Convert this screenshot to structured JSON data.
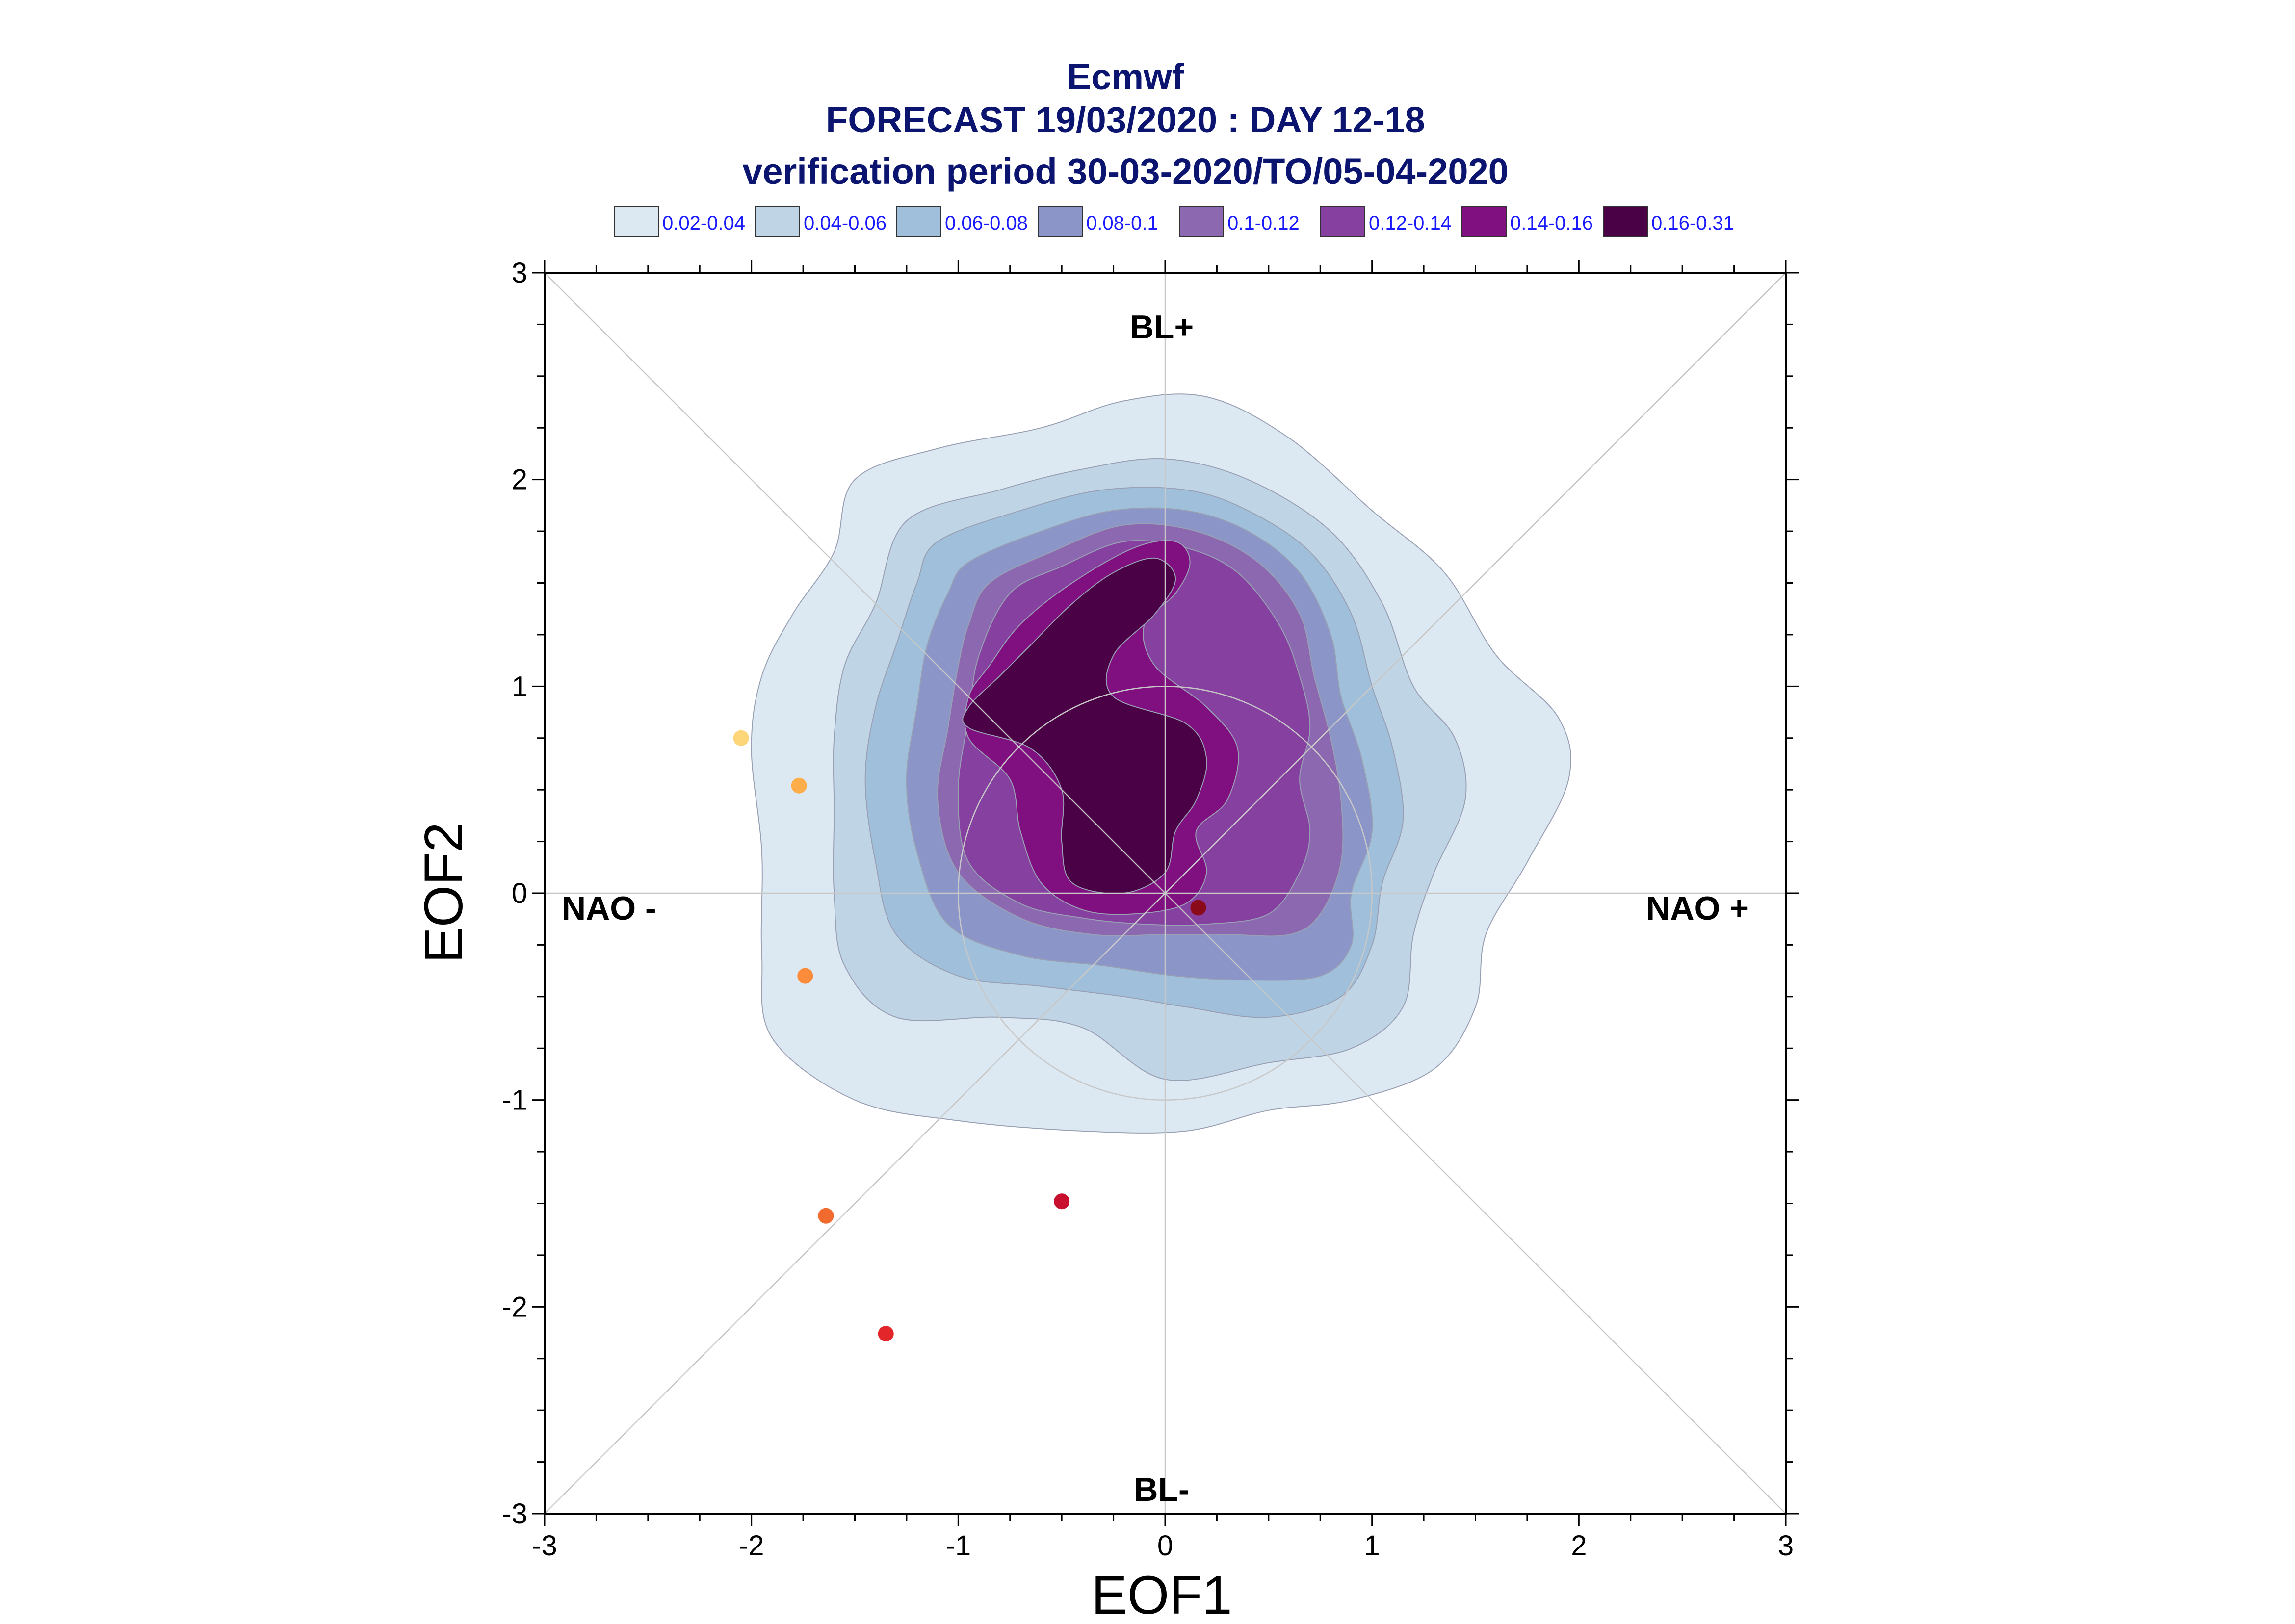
{
  "chart_data": {
    "type": "contour-scatter",
    "title": [
      "Ecmwf",
      "FORECAST 19/03/2020 : DAY 12-18",
      "verification period 30-03-2020/TO/05-04-2020"
    ],
    "xlabel": "EOF1",
    "ylabel": "EOF2",
    "xlim": [
      -3,
      3
    ],
    "ylim": [
      -3,
      3
    ],
    "xticks": [
      "-3",
      "-2",
      "-1",
      "0",
      "1",
      "2",
      "3"
    ],
    "yticks": [
      "-3",
      "-2",
      "-1",
      "0",
      "1",
      "2",
      "3"
    ],
    "regime_labels": {
      "top": "BL+",
      "bottom": "BL-",
      "left": "NAO -",
      "right": "NAO +"
    },
    "unit_circle_radius": 1,
    "diagonals": true,
    "legend": [
      {
        "label": "0.02-0.04",
        "color": "#dde9f2"
      },
      {
        "label": "0.04-0.06",
        "color": "#bfd4e5"
      },
      {
        "label": "0.06-0.08",
        "color": "#9fbfdb"
      },
      {
        "label": "0.08-0.1",
        "color": "#8b95c8"
      },
      {
        "label": "0.1-0.12",
        "color": "#8c68b0"
      },
      {
        "label": "0.12-0.14",
        "color": "#8640a0"
      },
      {
        "label": "0.14-0.16",
        "color": "#801080"
      },
      {
        "label": "0.16-0.31",
        "color": "#4a0145"
      }
    ],
    "contours": [
      {
        "level": "0.02-0.04",
        "points": [
          [
            -1.5,
            2.0
          ],
          [
            -1.1,
            2.15
          ],
          [
            -0.6,
            2.25
          ],
          [
            -0.2,
            2.38
          ],
          [
            0.2,
            2.4
          ],
          [
            0.6,
            2.2
          ],
          [
            1.0,
            1.85
          ],
          [
            1.35,
            1.55
          ],
          [
            1.6,
            1.15
          ],
          [
            1.9,
            0.85
          ],
          [
            1.95,
            0.55
          ],
          [
            1.75,
            0.15
          ],
          [
            1.55,
            -0.2
          ],
          [
            1.5,
            -0.55
          ],
          [
            1.3,
            -0.85
          ],
          [
            0.9,
            -1.0
          ],
          [
            0.5,
            -1.05
          ],
          [
            0.1,
            -1.15
          ],
          [
            -0.4,
            -1.15
          ],
          [
            -1.0,
            -1.1
          ],
          [
            -1.5,
            -1.0
          ],
          [
            -1.9,
            -0.7
          ],
          [
            -1.95,
            -0.3
          ],
          [
            -1.95,
            0.2
          ],
          [
            -2.0,
            0.7
          ],
          [
            -1.95,
            1.05
          ],
          [
            -1.8,
            1.35
          ],
          [
            -1.6,
            1.65
          ]
        ]
      },
      {
        "level": "0.04-0.06",
        "points": [
          [
            -1.25,
            1.8
          ],
          [
            -0.8,
            1.95
          ],
          [
            -0.4,
            2.05
          ],
          [
            0.0,
            2.1
          ],
          [
            0.4,
            2.0
          ],
          [
            0.8,
            1.75
          ],
          [
            1.05,
            1.4
          ],
          [
            1.2,
            1.0
          ],
          [
            1.4,
            0.75
          ],
          [
            1.45,
            0.45
          ],
          [
            1.3,
            0.1
          ],
          [
            1.2,
            -0.2
          ],
          [
            1.15,
            -0.55
          ],
          [
            0.9,
            -0.75
          ],
          [
            0.5,
            -0.82
          ],
          [
            0.0,
            -0.9
          ],
          [
            -0.4,
            -0.65
          ],
          [
            -0.8,
            -0.6
          ],
          [
            -1.3,
            -0.6
          ],
          [
            -1.55,
            -0.35
          ],
          [
            -1.6,
            0.0
          ],
          [
            -1.6,
            0.4
          ],
          [
            -1.6,
            0.75
          ],
          [
            -1.55,
            1.1
          ],
          [
            -1.4,
            1.4
          ]
        ]
      },
      {
        "level": "0.06-0.08",
        "points": [
          [
            -1.1,
            1.7
          ],
          [
            -0.7,
            1.85
          ],
          [
            -0.3,
            1.95
          ],
          [
            0.1,
            1.95
          ],
          [
            0.4,
            1.85
          ],
          [
            0.7,
            1.65
          ],
          [
            0.9,
            1.35
          ],
          [
            1.0,
            1.0
          ],
          [
            1.1,
            0.7
          ],
          [
            1.15,
            0.35
          ],
          [
            1.05,
            0.05
          ],
          [
            1.0,
            -0.25
          ],
          [
            0.85,
            -0.5
          ],
          [
            0.5,
            -0.6
          ],
          [
            0.1,
            -0.55
          ],
          [
            -0.2,
            -0.5
          ],
          [
            -0.6,
            -0.45
          ],
          [
            -1.0,
            -0.4
          ],
          [
            -1.3,
            -0.2
          ],
          [
            -1.4,
            0.15
          ],
          [
            -1.45,
            0.55
          ],
          [
            -1.4,
            0.9
          ],
          [
            -1.3,
            1.2
          ],
          [
            -1.2,
            1.5
          ]
        ]
      },
      {
        "level": "0.08-0.1",
        "points": [
          [
            -0.95,
            1.6
          ],
          [
            -0.6,
            1.75
          ],
          [
            -0.25,
            1.85
          ],
          [
            0.1,
            1.85
          ],
          [
            0.4,
            1.75
          ],
          [
            0.65,
            1.55
          ],
          [
            0.8,
            1.25
          ],
          [
            0.85,
            0.95
          ],
          [
            0.95,
            0.65
          ],
          [
            1.0,
            0.3
          ],
          [
            0.9,
            0.0
          ],
          [
            0.9,
            -0.25
          ],
          [
            0.75,
            -0.4
          ],
          [
            0.4,
            -0.42
          ],
          [
            0.05,
            -0.4
          ],
          [
            -0.3,
            -0.35
          ],
          [
            -0.7,
            -0.3
          ],
          [
            -1.05,
            -0.15
          ],
          [
            -1.2,
            0.2
          ],
          [
            -1.25,
            0.55
          ],
          [
            -1.2,
            0.9
          ],
          [
            -1.15,
            1.2
          ],
          [
            -1.05,
            1.45
          ]
        ]
      },
      {
        "level": "0.1-0.12",
        "points": [
          [
            -0.85,
            1.5
          ],
          [
            -0.55,
            1.65
          ],
          [
            -0.2,
            1.78
          ],
          [
            0.15,
            1.75
          ],
          [
            0.45,
            1.6
          ],
          [
            0.65,
            1.35
          ],
          [
            0.72,
            1.05
          ],
          [
            0.8,
            0.75
          ],
          [
            0.85,
            0.45
          ],
          [
            0.85,
            0.15
          ],
          [
            0.75,
            -0.1
          ],
          [
            0.6,
            -0.2
          ],
          [
            0.3,
            -0.2
          ],
          [
            0.0,
            -0.2
          ],
          [
            -0.35,
            -0.2
          ],
          [
            -0.7,
            -0.12
          ],
          [
            -1.0,
            0.1
          ],
          [
            -1.1,
            0.45
          ],
          [
            -1.05,
            0.8
          ],
          [
            -1.0,
            1.1
          ],
          [
            -0.95,
            1.3
          ]
        ]
      },
      {
        "level": "0.12-0.14",
        "points": [
          [
            -0.75,
            1.45
          ],
          [
            -0.5,
            1.58
          ],
          [
            -0.2,
            1.7
          ],
          [
            0.1,
            1.67
          ],
          [
            0.35,
            1.55
          ],
          [
            0.55,
            1.3
          ],
          [
            0.65,
            1.05
          ],
          [
            0.7,
            0.8
          ],
          [
            0.65,
            0.55
          ],
          [
            0.7,
            0.3
          ],
          [
            0.65,
            0.1
          ],
          [
            0.5,
            -0.1
          ],
          [
            0.2,
            -0.15
          ],
          [
            -0.1,
            -0.15
          ],
          [
            -0.4,
            -0.12
          ],
          [
            -0.7,
            -0.05
          ],
          [
            -0.95,
            0.15
          ],
          [
            -1.0,
            0.5
          ],
          [
            -0.95,
            0.85
          ],
          [
            -0.9,
            1.15
          ]
        ]
      },
      {
        "level": "0.14-0.16",
        "points": [
          [
            -0.7,
            1.3
          ],
          [
            -0.45,
            1.5
          ],
          [
            -0.15,
            1.67
          ],
          [
            0.05,
            1.7
          ],
          [
            0.12,
            1.6
          ],
          [
            0.05,
            1.45
          ],
          [
            -0.1,
            1.3
          ],
          [
            -0.05,
            1.1
          ],
          [
            0.2,
            0.9
          ],
          [
            0.35,
            0.7
          ],
          [
            0.3,
            0.45
          ],
          [
            0.15,
            0.3
          ],
          [
            0.2,
            0.1
          ],
          [
            0.1,
            -0.05
          ],
          [
            -0.15,
            -0.1
          ],
          [
            -0.4,
            -0.08
          ],
          [
            -0.6,
            0.05
          ],
          [
            -0.7,
            0.3
          ],
          [
            -0.75,
            0.55
          ],
          [
            -0.95,
            0.75
          ],
          [
            -0.95,
            0.95
          ],
          [
            -0.85,
            1.1
          ]
        ]
      },
      {
        "level": "0.16-0.31",
        "points": [
          [
            -0.65,
            1.2
          ],
          [
            -0.45,
            1.4
          ],
          [
            -0.25,
            1.55
          ],
          [
            -0.05,
            1.62
          ],
          [
            0.05,
            1.52
          ],
          [
            -0.05,
            1.35
          ],
          [
            -0.25,
            1.15
          ],
          [
            -0.25,
            0.95
          ],
          [
            0.1,
            0.82
          ],
          [
            0.2,
            0.65
          ],
          [
            0.15,
            0.45
          ],
          [
            0.05,
            0.3
          ],
          [
            0.0,
            0.1
          ],
          [
            -0.2,
            0.0
          ],
          [
            -0.45,
            0.05
          ],
          [
            -0.5,
            0.25
          ],
          [
            -0.5,
            0.5
          ],
          [
            -0.65,
            0.7
          ],
          [
            -0.95,
            0.8
          ],
          [
            -0.95,
            0.9
          ],
          [
            -0.8,
            1.05
          ]
        ]
      }
    ],
    "bump": {
      "level": "0.1-0.12",
      "points": [
        [
          0.0,
          1.2
        ],
        [
          0.15,
          1.3
        ],
        [
          0.35,
          1.28
        ],
        [
          0.5,
          1.15
        ],
        [
          0.4,
          1.0
        ],
        [
          0.2,
          0.98
        ],
        [
          0.0,
          1.05
        ]
      ]
    },
    "points": [
      {
        "x": -2.05,
        "y": 0.75,
        "color": "#fdd67a"
      },
      {
        "x": -1.77,
        "y": 0.52,
        "color": "#fdae4b"
      },
      {
        "x": -1.74,
        "y": -0.4,
        "color": "#fb8c3c"
      },
      {
        "x": -1.64,
        "y": -1.56,
        "color": "#f26b2e"
      },
      {
        "x": -1.35,
        "y": -2.13,
        "color": "#e3262a"
      },
      {
        "x": -0.5,
        "y": -1.49,
        "color": "#c8102e"
      },
      {
        "x": 0.16,
        "y": -0.07,
        "color": "#8b0a1a"
      }
    ]
  }
}
